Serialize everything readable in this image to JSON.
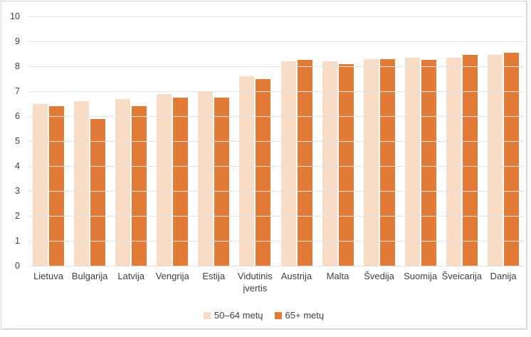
{
  "chart_data": {
    "type": "bar",
    "title": "",
    "categories": [
      "Lietuva",
      "Bulgarija",
      "Latvija",
      "Vengrija",
      "Estija",
      "Vidutinis įvertis",
      "Austrija",
      "Malta",
      "Švedija",
      "Suomija",
      "Šveicarija",
      "Danija"
    ],
    "series": [
      {
        "name": "50–64 metų",
        "color": "#f8dcc5",
        "values": [
          6.5,
          6.6,
          6.7,
          6.9,
          7.0,
          7.6,
          8.2,
          8.2,
          8.3,
          8.35,
          8.35,
          8.45
        ]
      },
      {
        "name": "65+ metų",
        "color": "#e27a38",
        "values": [
          6.4,
          5.9,
          6.4,
          6.75,
          6.75,
          7.5,
          8.25,
          8.1,
          8.3,
          8.25,
          8.45,
          8.55
        ]
      }
    ],
    "xlabel": "",
    "ylabel": "",
    "ylim": [
      0,
      10
    ],
    "ytick_step": 1,
    "yticks": [
      "0",
      "1",
      "2",
      "3",
      "4",
      "5",
      "6",
      "7",
      "8",
      "9",
      "10"
    ],
    "grid": true,
    "legend_position": "bottom",
    "colors": {
      "gridline": "#e2e2e2",
      "axis_text": "#3f3f3f",
      "frame_border": "#d5d1d1",
      "background": "#ffffff"
    }
  }
}
